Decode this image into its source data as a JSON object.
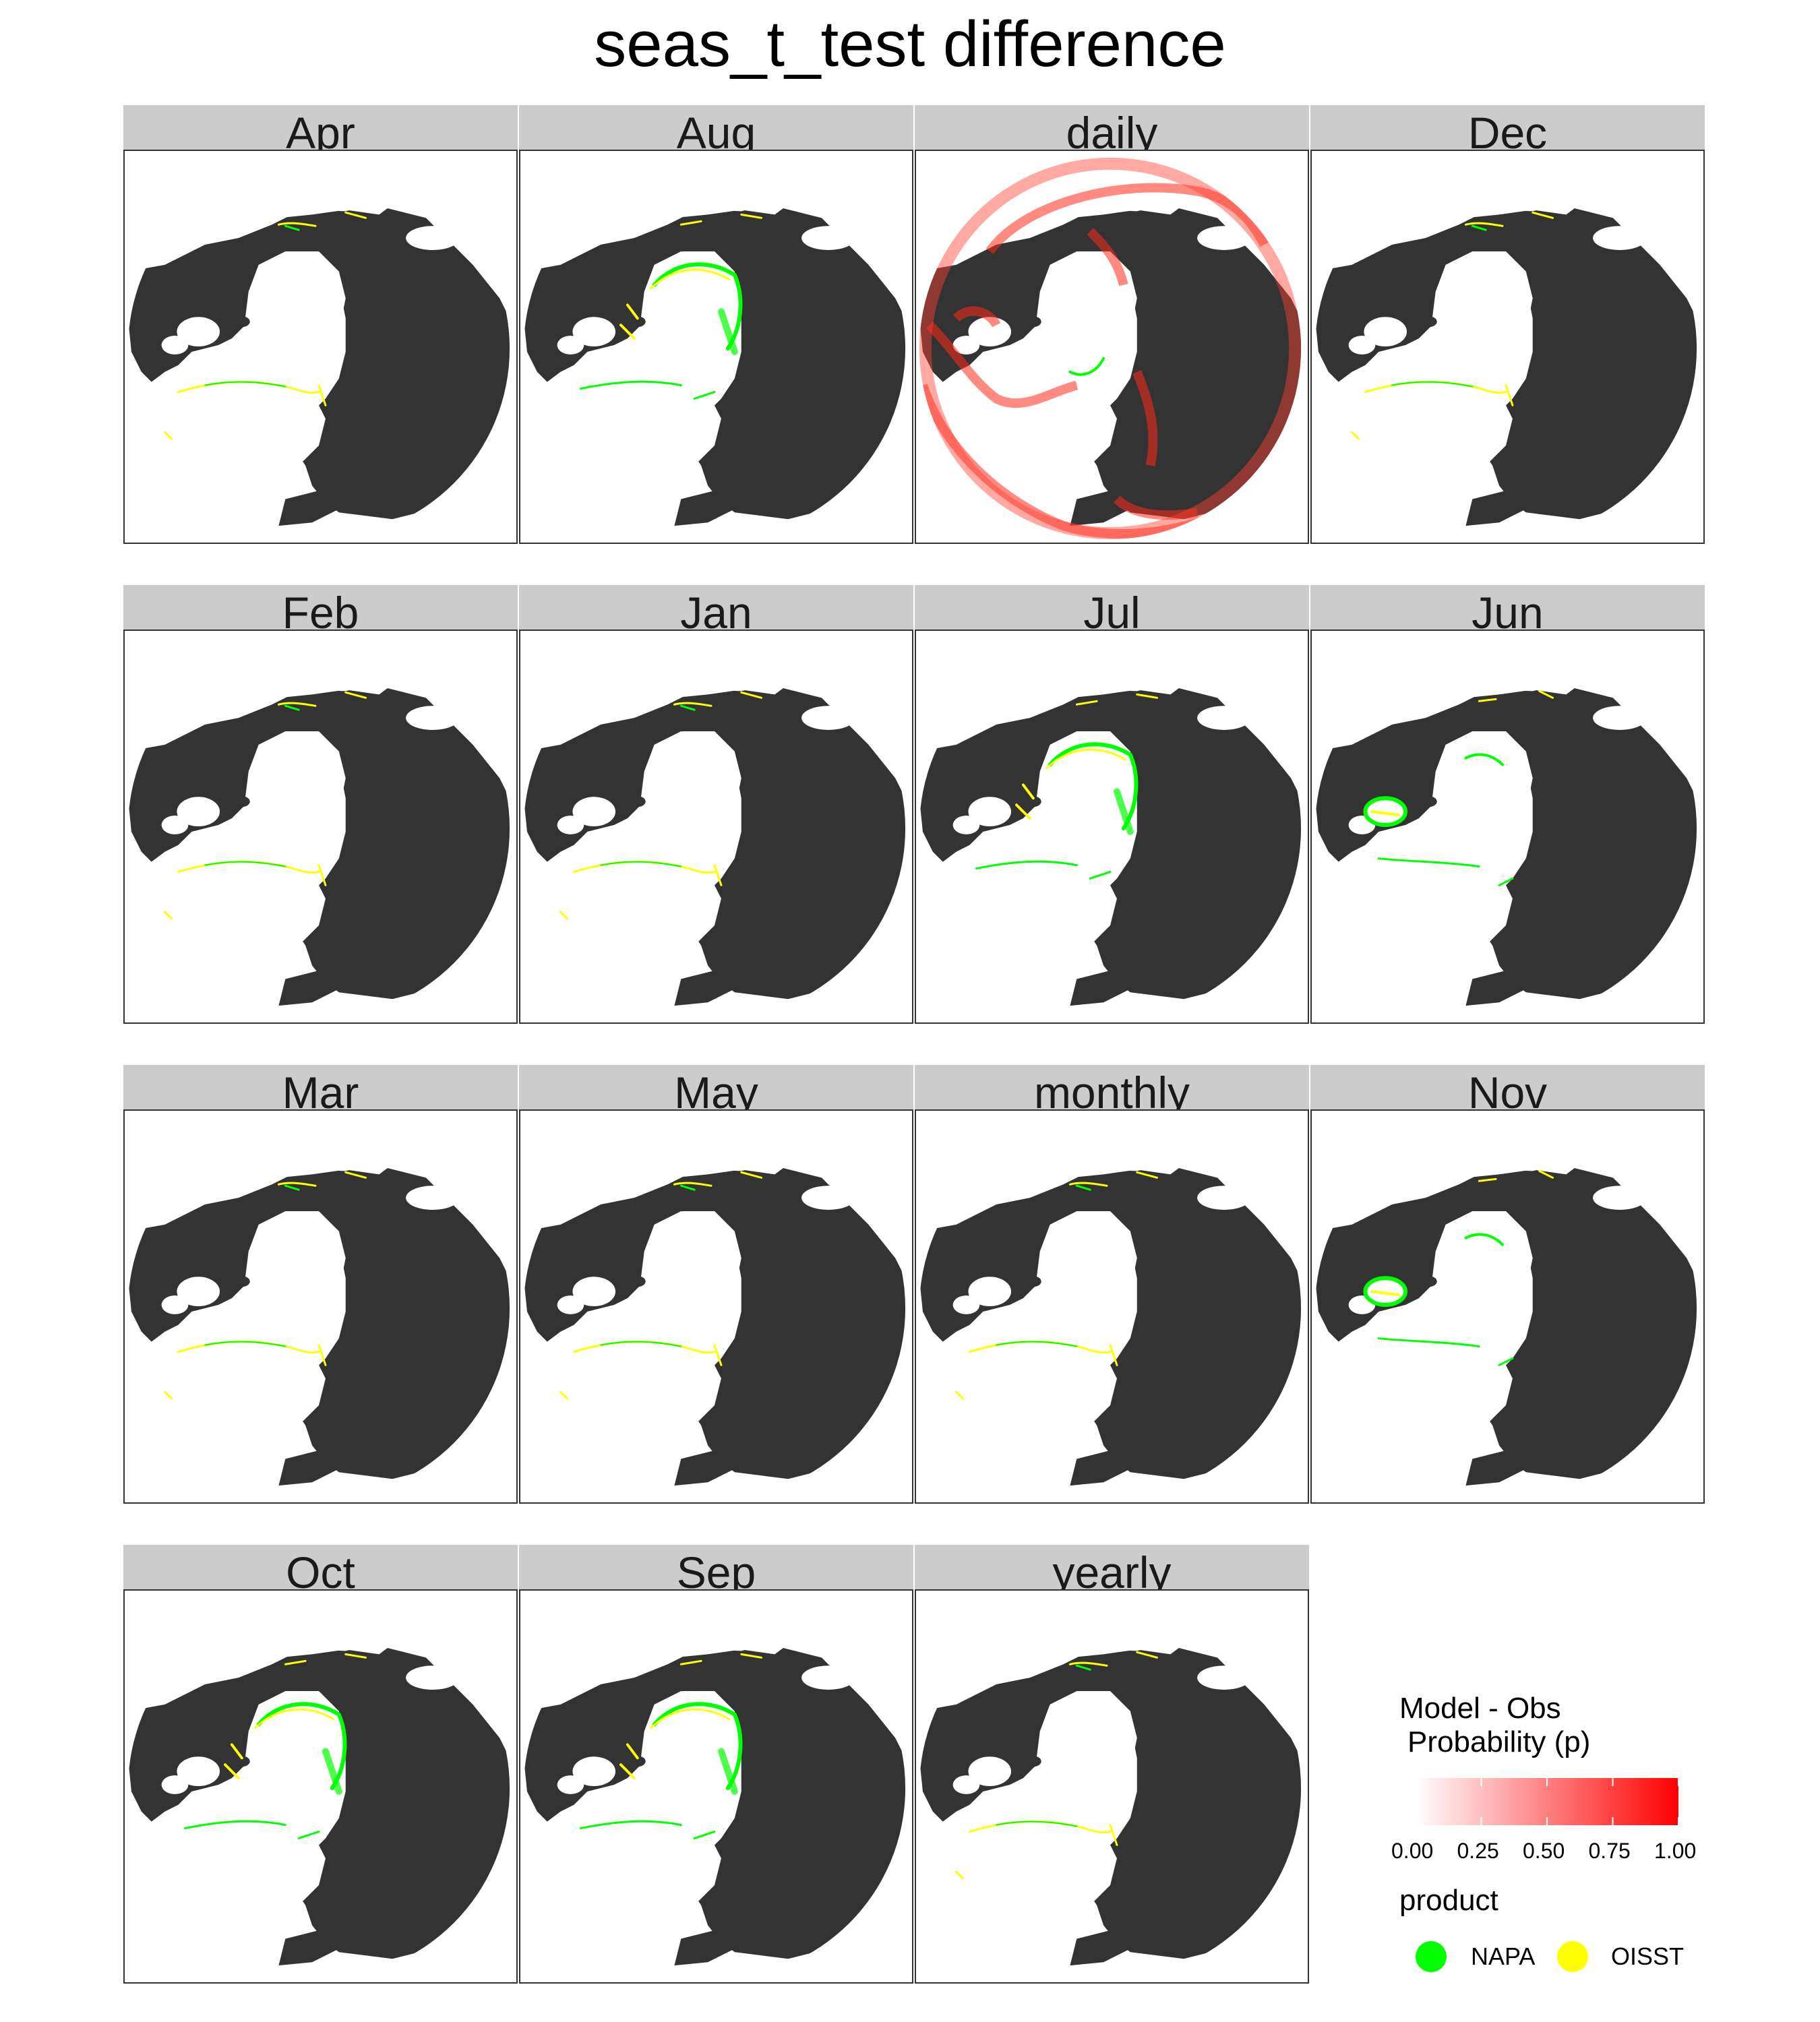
{
  "title": "seas_t_test difference",
  "chart_data": {
    "type": "faceted-map",
    "title": "seas_t_test difference",
    "projection": "north-polar-stereographic",
    "facets": [
      {
        "label": "Apr",
        "pattern": "sparse",
        "red": 0
      },
      {
        "label": "Aug",
        "pattern": "arctic-green",
        "red": 0
      },
      {
        "label": "daily",
        "pattern": "red-wide",
        "red": 1
      },
      {
        "label": "Dec",
        "pattern": "sparse",
        "red": 0
      },
      {
        "label": "Feb",
        "pattern": "sparse",
        "red": 0
      },
      {
        "label": "Jan",
        "pattern": "sparse",
        "red": 0
      },
      {
        "label": "Jul",
        "pattern": "arctic-green",
        "red": 0
      },
      {
        "label": "Jun",
        "pattern": "hudson-green",
        "red": 0
      },
      {
        "label": "Mar",
        "pattern": "sparse",
        "red": 0
      },
      {
        "label": "May",
        "pattern": "sparse",
        "red": 0
      },
      {
        "label": "monthly",
        "pattern": "sparse",
        "red": 0
      },
      {
        "label": "Nov",
        "pattern": "hudson-green",
        "red": 0
      },
      {
        "label": "Oct",
        "pattern": "arctic-green",
        "red": 0
      },
      {
        "label": "Sep",
        "pattern": "arctic-green",
        "red": 0
      },
      {
        "label": "yearly",
        "pattern": "sparse",
        "red": 0
      }
    ],
    "fill_scale": {
      "title_line1": "Model - Obs",
      "title_line2": "Probability (p)",
      "range": [
        0,
        1
      ],
      "ticks": [
        "0.00",
        "0.25",
        "0.50",
        "0.75",
        "1.00"
      ],
      "low_color": "#ffffff",
      "high_color": "#ff0000"
    },
    "color_legend": {
      "title": "product",
      "items": [
        {
          "label": "NAPA",
          "color": "#00ff00"
        },
        {
          "label": "OISST",
          "color": "#ffff00"
        }
      ]
    },
    "land_color": "#333333"
  }
}
